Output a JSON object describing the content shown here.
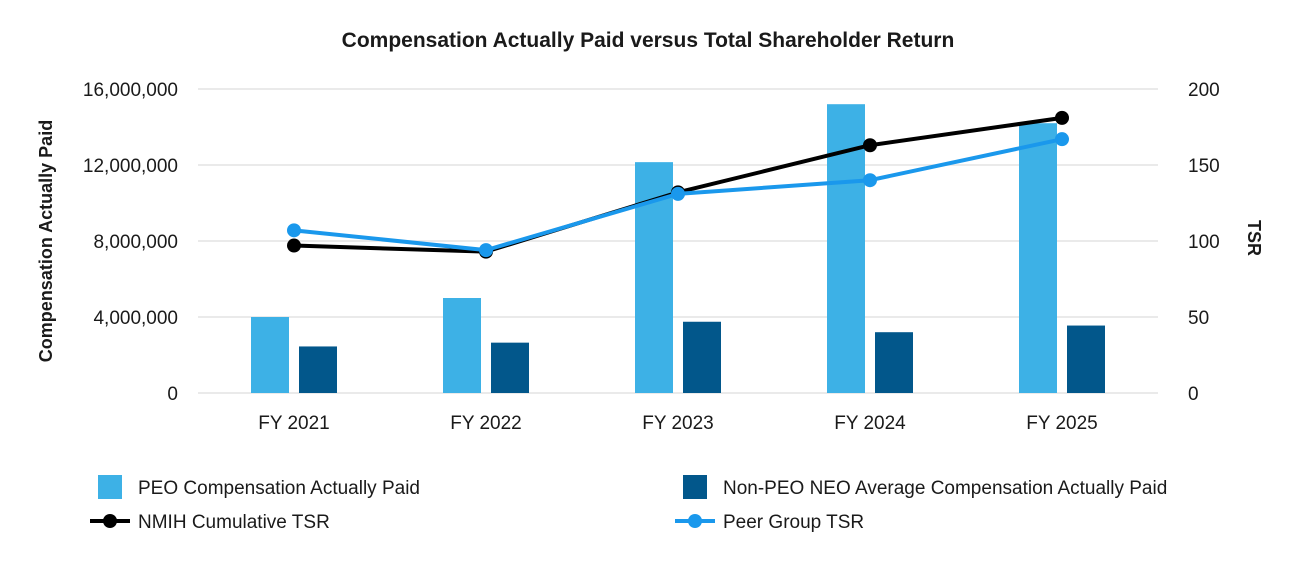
{
  "chart_data": {
    "type": "bar",
    "title": "Compensation Actually Paid versus Total Shareholder Return",
    "ylabel": "Compensation Actually Paid",
    "y2label": "TSR",
    "xlabel": "",
    "categories": [
      "FY 2021",
      "FY 2022",
      "FY 2023",
      "FY 2024",
      "FY 2025"
    ],
    "ylim": [
      0,
      16000000
    ],
    "y2lim": [
      0,
      200
    ],
    "yticks": [
      0,
      4000000,
      8000000,
      12000000,
      16000000
    ],
    "ytick_labels": [
      "0",
      "4,000,000",
      "8,000,000",
      "12,000,000",
      "16,000,000"
    ],
    "y2ticks": [
      0,
      50,
      100,
      150,
      200
    ],
    "y2tick_labels": [
      "0",
      "50",
      "100",
      "150",
      "200"
    ],
    "grid": true,
    "legend_position": "bottom",
    "series": [
      {
        "name": "PEO Compensation Actually Paid",
        "kind": "bar",
        "axis": "left",
        "color": "#3db1e6",
        "values": [
          4000000,
          5000000,
          12150000,
          15200000,
          14200000
        ]
      },
      {
        "name": "Non-PEO NEO Average Compensation Actually Paid",
        "kind": "bar",
        "axis": "left",
        "color": "#02578b",
        "values": [
          2450000,
          2650000,
          3750000,
          3200000,
          3550000
        ]
      },
      {
        "name": "NMIH Cumulative TSR",
        "kind": "line",
        "axis": "right",
        "color": "#000000",
        "values": [
          97,
          93,
          132,
          163,
          181
        ]
      },
      {
        "name": "Peer Group TSR",
        "kind": "line",
        "axis": "right",
        "color": "#1a98ec",
        "values": [
          107,
          94,
          131,
          140,
          167
        ]
      }
    ]
  }
}
